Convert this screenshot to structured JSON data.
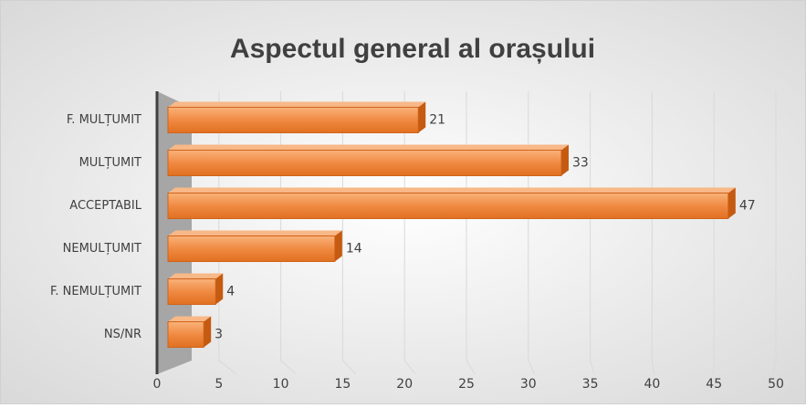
{
  "chart_data": {
    "type": "bar",
    "orientation": "horizontal",
    "title": "Aspectul general al orașului",
    "categories": [
      "F. MULȚUMIT",
      "MULȚUMIT",
      "ACCEPTABIL",
      "NEMULȚUMIT",
      "F. NEMULȚUMIT",
      "NS/NR"
    ],
    "values": [
      21,
      33,
      47,
      14,
      4,
      3
    ],
    "color": "#f4a460",
    "xlim": [
      0,
      50
    ],
    "xticks": [
      0,
      5,
      10,
      15,
      20,
      25,
      30,
      35,
      40,
      45,
      50
    ],
    "grid": true
  }
}
